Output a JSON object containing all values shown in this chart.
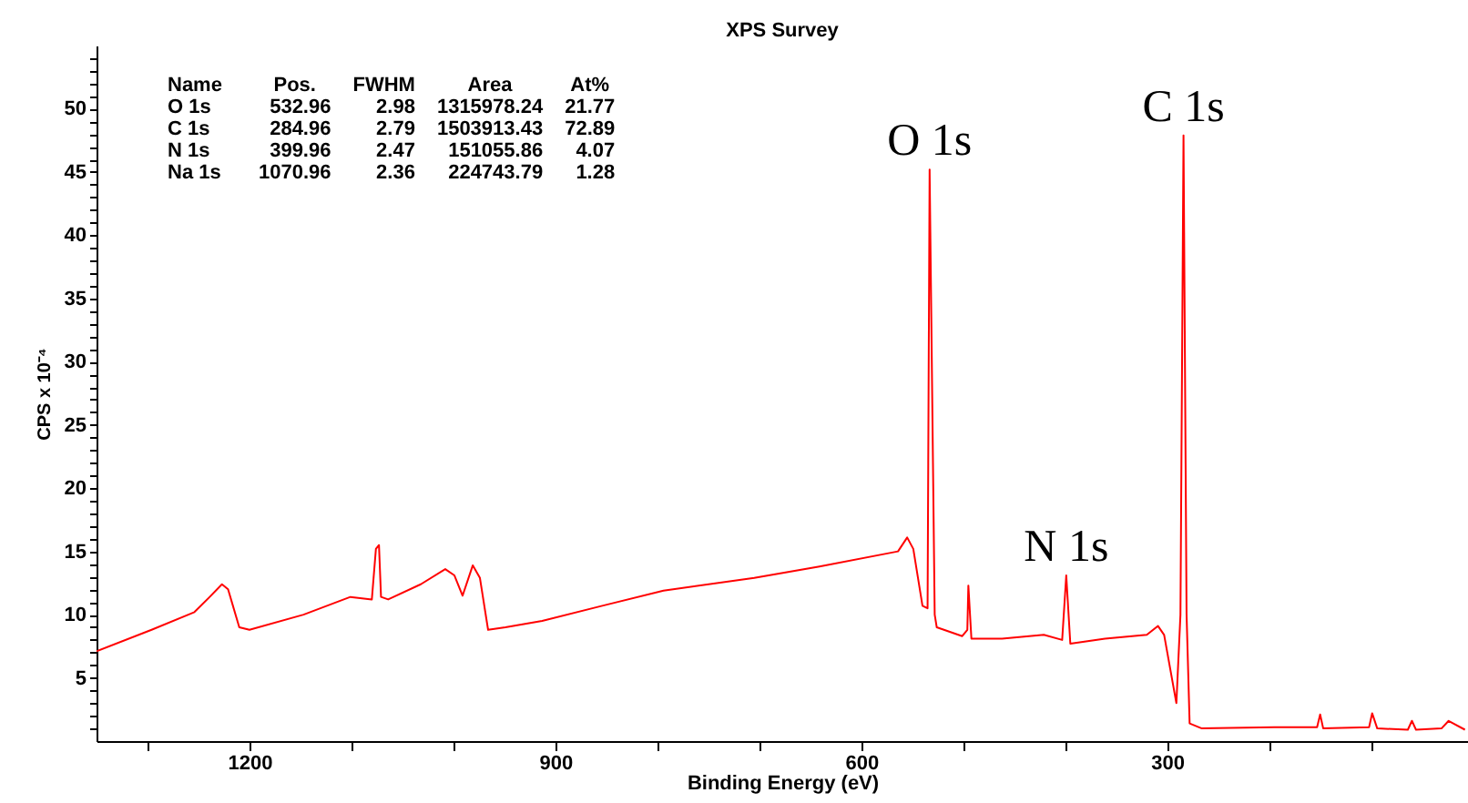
{
  "chart_data": {
    "type": "line",
    "title": "XPS Survey",
    "xlabel": "Binding Energy (eV)",
    "ylabel": "CPS x 10⁻⁴",
    "xlim": [
      1350,
      5
    ],
    "ylim": [
      0,
      55
    ],
    "xticks": [
      {
        "value": 1300,
        "label": null
      },
      1200,
      {
        "value": 1100,
        "label": null
      },
      {
        "value": 1000,
        "label": null
      },
      900,
      {
        "value": 800,
        "label": null
      },
      {
        "value": 700,
        "label": null
      },
      600,
      {
        "value": 500,
        "label": null
      },
      {
        "value": 400,
        "label": null
      },
      300,
      {
        "value": 200,
        "label": null
      },
      {
        "value": 100,
        "label": null
      }
    ],
    "yticks": [
      {
        "value": 1,
        "label": null
      },
      {
        "value": 2,
        "label": null
      },
      {
        "value": 3,
        "label": null
      },
      {
        "value": 4,
        "label": null
      },
      5,
      {
        "value": 6,
        "label": null
      },
      {
        "value": 7,
        "label": null
      },
      {
        "value": 8,
        "label": null
      },
      {
        "value": 9,
        "label": null
      },
      10,
      {
        "value": 11,
        "label": null
      },
      {
        "value": 12,
        "label": null
      },
      {
        "value": 13,
        "label": null
      },
      {
        "value": 14,
        "label": null
      },
      15,
      {
        "value": 16,
        "label": null
      },
      {
        "value": 17,
        "label": null
      },
      {
        "value": 18,
        "label": null
      },
      {
        "value": 19,
        "label": null
      },
      20,
      {
        "value": 21,
        "label": null
      },
      {
        "value": 22,
        "label": null
      },
      {
        "value": 23,
        "label": null
      },
      {
        "value": 24,
        "label": null
      },
      25,
      {
        "value": 26,
        "label": null
      },
      {
        "value": 27,
        "label": null
      },
      {
        "value": 28,
        "label": null
      },
      {
        "value": 29,
        "label": null
      },
      30,
      {
        "value": 31,
        "label": null
      },
      {
        "value": 32,
        "label": null
      },
      {
        "value": 33,
        "label": null
      },
      {
        "value": 34,
        "label": null
      },
      35,
      {
        "value": 36,
        "label": null
      },
      {
        "value": 37,
        "label": null
      },
      {
        "value": 38,
        "label": null
      },
      {
        "value": 39,
        "label": null
      },
      40,
      {
        "value": 41,
        "label": null
      },
      {
        "value": 42,
        "label": null
      },
      {
        "value": 43,
        "label": null
      },
      {
        "value": 44,
        "label": null
      },
      45,
      {
        "value": 46,
        "label": null
      },
      {
        "value": 47,
        "label": null
      },
      {
        "value": 48,
        "label": null
      },
      {
        "value": 49,
        "label": null
      },
      50,
      {
        "value": 51,
        "label": null
      },
      {
        "value": 52,
        "label": null
      },
      {
        "value": 53,
        "label": null
      },
      {
        "value": 54,
        "label": null
      }
    ],
    "grid": false,
    "marker": "none",
    "line_style": "solid",
    "series": [
      {
        "color": "#ff0000",
        "x": [
          1350,
          1296,
          1254,
          1239,
          1227,
          1221,
          1210,
          1200,
          1147,
          1101,
          1080,
          1076,
          1073,
          1071,
          1064,
          1032,
          1008,
          999,
          991,
          981,
          974,
          966,
          949,
          913,
          854,
          794,
          705,
          641,
          564,
          555,
          549,
          540,
          535,
          533,
          528,
          526,
          501,
          496,
          495,
          492,
          462,
          421,
          403,
          399,
          395,
          361,
          320,
          309,
          303,
          291,
          287,
          284,
          281,
          278,
          266,
          195,
          153,
          150,
          147,
          102,
          99,
          94,
          64,
          60,
          56,
          31,
          24,
          8
        ],
        "values": [
          7.1,
          8.8,
          10.2,
          11.4,
          12.4,
          12.0,
          9.0,
          8.8,
          10.0,
          11.4,
          11.2,
          15.2,
          15.5,
          11.4,
          11.2,
          12.4,
          13.6,
          13.1,
          11.5,
          13.9,
          12.9,
          8.8,
          9.0,
          9.5,
          10.7,
          11.9,
          12.9,
          13.8,
          15.0,
          16.1,
          15.2,
          10.7,
          10.5,
          45.2,
          10.0,
          9.0,
          8.3,
          8.8,
          12.3,
          8.1,
          8.1,
          8.4,
          8.0,
          13.1,
          7.7,
          8.1,
          8.4,
          9.1,
          8.4,
          3.0,
          10.0,
          47.9,
          10.0,
          1.4,
          1.0,
          1.1,
          1.1,
          2.1,
          1.0,
          1.1,
          2.2,
          1.0,
          0.9,
          1.6,
          0.9,
          1.0,
          1.6,
          0.9
        ]
      }
    ],
    "annotations": [
      {
        "text": "O 1s",
        "x": 533,
        "y": 45.2
      },
      {
        "text": "C 1s",
        "x": 284,
        "y": 47.9
      },
      {
        "text": "N 1s",
        "x": 399,
        "y": 13.1
      },
      "Name",
      "Pos.",
      "FWHM",
      "Area",
      "At%",
      "O 1s",
      "532.96",
      "2.98",
      "1315978.24",
      "21.77",
      "C 1s",
      "284.96",
      "2.79",
      "1503913.43",
      "72.89",
      "N 1s",
      "399.96",
      "2.47",
      "151055.86",
      "4.07",
      "Na 1s",
      "1070.96",
      "2.36",
      "224743.79",
      "1.28"
    ]
  }
}
